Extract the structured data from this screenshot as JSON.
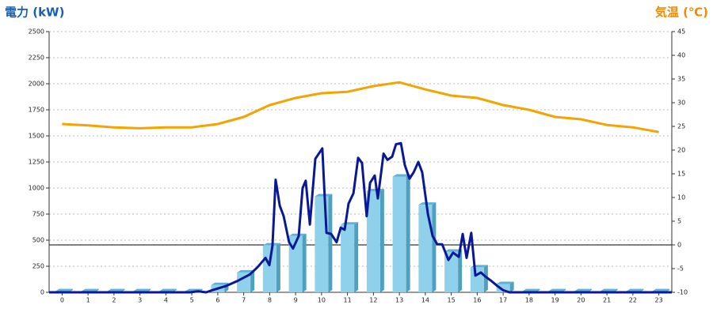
{
  "chart_data": {
    "type": "combo",
    "y_label": "電力 (kW)",
    "y2_label": "気温 (℃)",
    "xlim": [
      -0.5,
      23.5
    ],
    "xticks": [
      0,
      1,
      2,
      3,
      4,
      5,
      6,
      7,
      8,
      9,
      10,
      11,
      12,
      13,
      14,
      15,
      16,
      17,
      18,
      19,
      20,
      21,
      22,
      23
    ],
    "ylim": [
      0,
      2500
    ],
    "yticks": [
      0,
      250,
      500,
      750,
      1000,
      1250,
      1500,
      1750,
      2000,
      2250,
      2500
    ],
    "y2lim": [
      -10,
      45
    ],
    "y2ticks": [
      -10,
      -5,
      0,
      5,
      10,
      15,
      20,
      25,
      30,
      35,
      40,
      45
    ],
    "grid": true,
    "series": [
      {
        "type": "bar",
        "color": "#8fd0ea",
        "x": [
          0,
          1,
          2,
          3,
          4,
          5,
          6,
          7,
          8,
          9,
          10,
          11,
          12,
          13,
          14,
          15,
          16,
          17,
          18,
          19,
          20,
          21,
          22,
          23
        ],
        "values": [
          10,
          10,
          10,
          10,
          10,
          10,
          70,
          190,
          450,
          540,
          920,
          650,
          970,
          1110,
          840,
          390,
          240,
          80,
          10,
          10,
          10,
          10,
          10,
          10
        ]
      },
      {
        "type": "line",
        "color": "#0a1896",
        "x": [
          -0.5,
          4.94,
          5.24,
          5.55,
          5.85,
          6.31,
          6.77,
          7.23,
          7.53,
          7.84,
          7.99,
          8.11,
          8.23,
          8.39,
          8.54,
          8.75,
          8.9,
          9.12,
          9.27,
          9.39,
          9.55,
          9.76,
          10.03,
          10.19,
          10.37,
          10.58,
          10.74,
          10.89,
          11.04,
          11.23,
          11.41,
          11.56,
          11.74,
          11.87,
          12.05,
          12.17,
          12.39,
          12.54,
          12.72,
          12.87,
          13.06,
          13.21,
          13.39,
          13.55,
          13.73,
          13.88,
          14.1,
          14.28,
          14.46,
          14.65,
          14.89,
          15.07,
          15.29,
          15.44,
          15.59,
          15.77,
          15.93,
          16.14,
          16.32,
          16.54,
          16.78,
          17.0,
          17.24,
          23.5
        ],
        "values": [
          0,
          0,
          10,
          0,
          25,
          60,
          110,
          170,
          240,
          330,
          260,
          450,
          1080,
          830,
          730,
          480,
          420,
          540,
          1000,
          1070,
          650,
          1280,
          1380,
          570,
          560,
          480,
          620,
          600,
          850,
          950,
          1290,
          1240,
          730,
          1050,
          1120,
          900,
          1330,
          1270,
          1300,
          1420,
          1430,
          1220,
          1090,
          1150,
          1250,
          1150,
          750,
          540,
          460,
          460,
          310,
          380,
          340,
          560,
          330,
          570,
          160,
          190,
          150,
          110,
          60,
          20,
          0,
          0
        ]
      },
      {
        "type": "line",
        "axis": "y2",
        "color": "#f5a300",
        "x": [
          0,
          1,
          2,
          3,
          4,
          5,
          6,
          7,
          8,
          9,
          10,
          11,
          12,
          13,
          14,
          15,
          16,
          17,
          18,
          19,
          20,
          21,
          22,
          23
        ],
        "values": [
          25.5,
          25.2,
          24.8,
          24.6,
          24.8,
          24.8,
          25.5,
          27,
          29.5,
          31,
          32,
          32.3,
          33.5,
          34.3,
          32.8,
          31.5,
          31,
          29.5,
          28.5,
          27,
          26.5,
          25.3,
          24.8,
          23.8
        ]
      }
    ]
  }
}
